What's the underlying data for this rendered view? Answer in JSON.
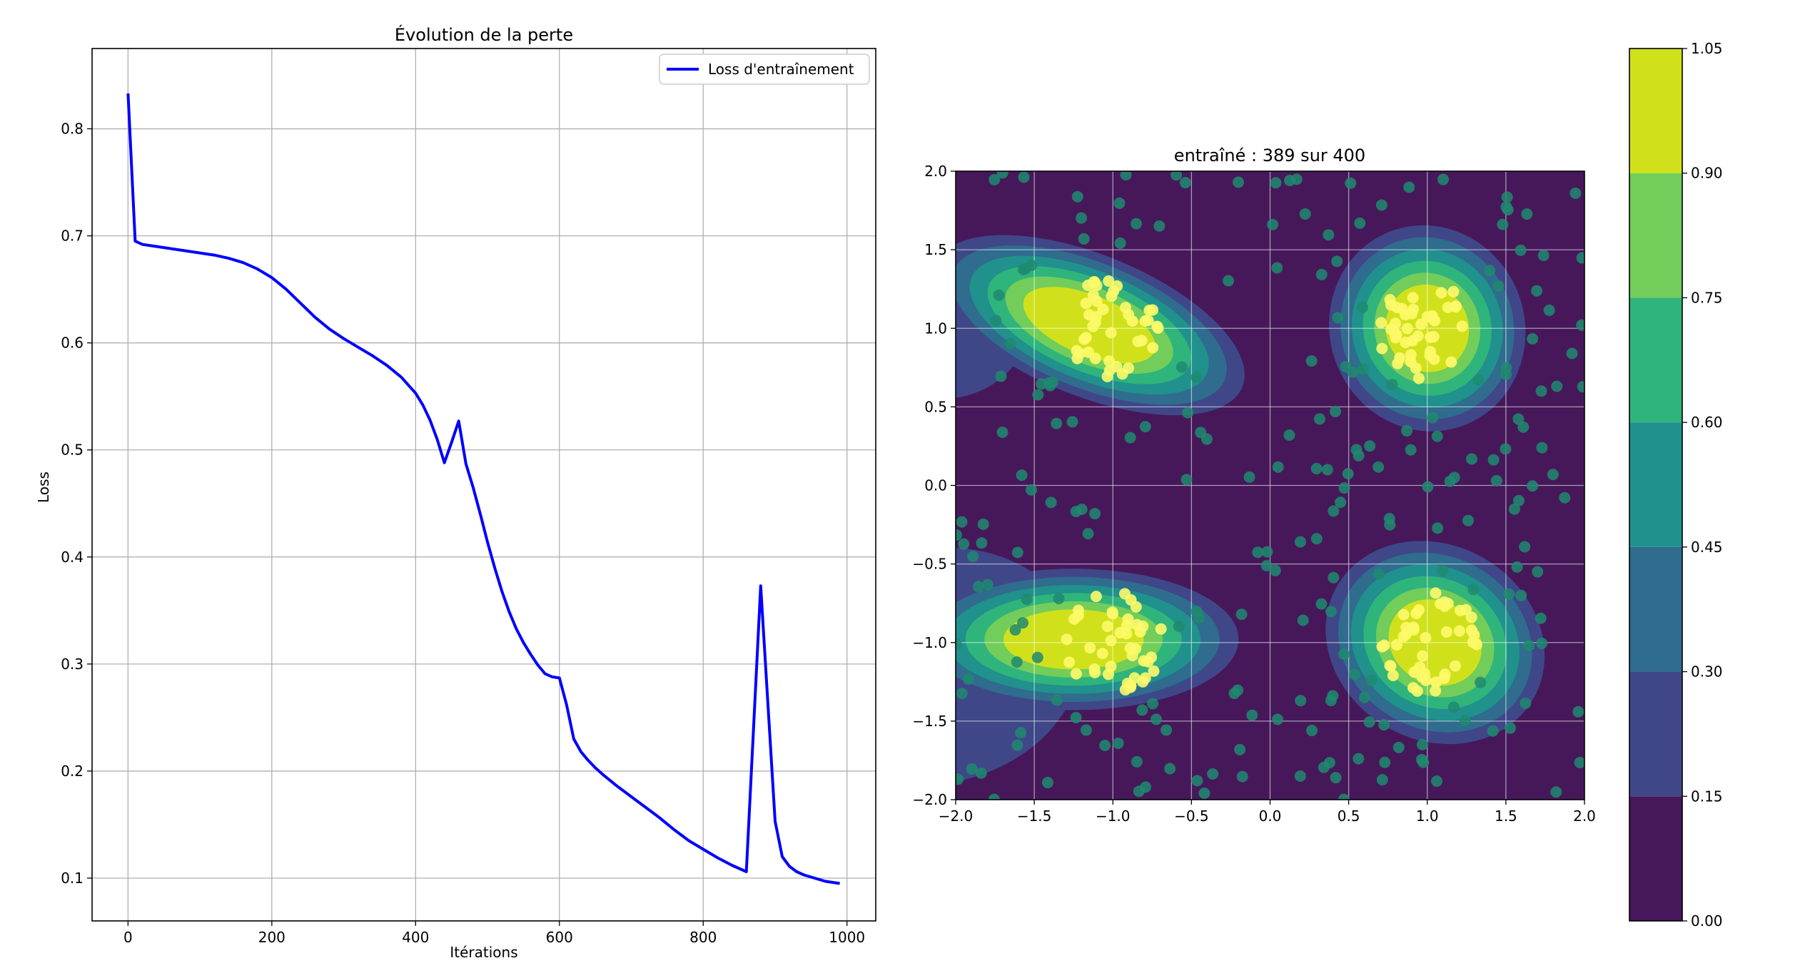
{
  "chart_data": [
    {
      "type": "line",
      "title": "Évolution de la perte",
      "xlabel": "Itérations",
      "ylabel": "Loss",
      "xlim": [
        -50,
        1040
      ],
      "ylim": [
        0.06,
        0.875
      ],
      "xticks": [
        0,
        200,
        400,
        600,
        800,
        1000
      ],
      "yticks": [
        0.1,
        0.2,
        0.3,
        0.4,
        0.5,
        0.6,
        0.7,
        0.8
      ],
      "grid": true,
      "legend_placement": "top-right",
      "colors": {
        "line": "#0000ff",
        "grid": "#b0b0b0"
      },
      "series": [
        {
          "name": "Loss d'entraînement",
          "x": [
            0,
            10,
            20,
            40,
            60,
            80,
            100,
            120,
            140,
            160,
            180,
            200,
            220,
            240,
            260,
            280,
            300,
            320,
            340,
            360,
            380,
            400,
            410,
            420,
            430,
            440,
            450,
            460,
            470,
            480,
            490,
            500,
            510,
            520,
            530,
            540,
            550,
            560,
            570,
            580,
            590,
            600,
            610,
            620,
            630,
            640,
            650,
            660,
            680,
            700,
            720,
            740,
            760,
            780,
            800,
            820,
            840,
            860,
            880,
            900,
            910,
            920,
            930,
            940,
            950,
            960,
            970,
            980,
            990
          ],
          "y": [
            0.833,
            0.695,
            0.692,
            0.69,
            0.688,
            0.686,
            0.684,
            0.682,
            0.679,
            0.675,
            0.669,
            0.661,
            0.65,
            0.637,
            0.624,
            0.613,
            0.604,
            0.596,
            0.588,
            0.579,
            0.568,
            0.553,
            0.542,
            0.528,
            0.51,
            0.488,
            0.507,
            0.527,
            0.487,
            0.465,
            0.44,
            0.414,
            0.39,
            0.368,
            0.349,
            0.333,
            0.32,
            0.309,
            0.299,
            0.291,
            0.288,
            0.287,
            0.262,
            0.23,
            0.218,
            0.21,
            0.203,
            0.197,
            0.186,
            0.176,
            0.166,
            0.156,
            0.145,
            0.135,
            0.127,
            0.119,
            0.112,
            0.106,
            0.373,
            0.153,
            0.12,
            0.111,
            0.106,
            0.103,
            0.101,
            0.099,
            0.097,
            0.096,
            0.095
          ]
        }
      ]
    },
    {
      "type": "heatmap",
      "title": "entraîné : 389 sur 400",
      "xlim": [
        -2.0,
        2.0
      ],
      "ylim": [
        -2.0,
        2.0
      ],
      "xticks": [
        -2.0,
        -1.5,
        -1.0,
        -0.5,
        0.0,
        0.5,
        1.0,
        1.5,
        2.0
      ],
      "yticks": [
        -2.0,
        -1.5,
        -1.0,
        -0.5,
        0.0,
        0.5,
        1.0,
        1.5,
        2.0
      ],
      "grid": true,
      "colorbar": {
        "levels": [
          0.0,
          0.15,
          0.3,
          0.45,
          0.6,
          0.75,
          0.9,
          1.05
        ],
        "colors": [
          "#46185a",
          "#3f4788",
          "#2f6c8e",
          "#20918c",
          "#2fb47c",
          "#72cd5a",
          "#d0e11c"
        ]
      },
      "point_colors": {
        "class_0": "#1f8a70",
        "class_1": "#fdfa6a"
      },
      "clusters": [
        {
          "center": [
            -1.0,
            1.0
          ],
          "label": 1
        },
        {
          "center": [
            1.0,
            1.0
          ],
          "label": 1
        },
        {
          "center": [
            -1.0,
            -1.0
          ],
          "label": 1
        },
        {
          "center": [
            1.0,
            -1.0
          ],
          "label": 1
        }
      ]
    }
  ]
}
